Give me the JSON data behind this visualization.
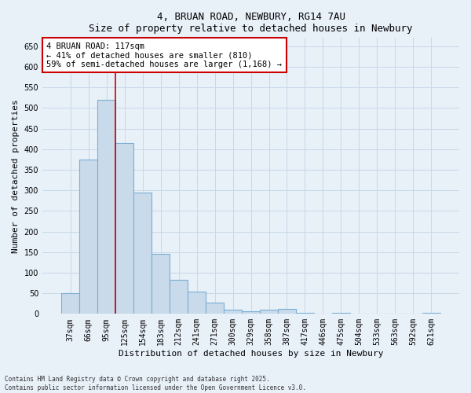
{
  "title_line1": "4, BRUAN ROAD, NEWBURY, RG14 7AU",
  "title_line2": "Size of property relative to detached houses in Newbury",
  "xlabel": "Distribution of detached houses by size in Newbury",
  "ylabel": "Number of detached properties",
  "categories": [
    "37sqm",
    "66sqm",
    "95sqm",
    "125sqm",
    "154sqm",
    "183sqm",
    "212sqm",
    "241sqm",
    "271sqm",
    "300sqm",
    "329sqm",
    "358sqm",
    "387sqm",
    "417sqm",
    "446sqm",
    "475sqm",
    "504sqm",
    "533sqm",
    "563sqm",
    "592sqm",
    "621sqm"
  ],
  "values": [
    50,
    375,
    520,
    415,
    295,
    145,
    83,
    55,
    28,
    10,
    7,
    11,
    12,
    2,
    0,
    3,
    0,
    0,
    0,
    0,
    2
  ],
  "bar_color": "#c9daea",
  "bar_edge_color": "#7bafd4",
  "vline_after_index": 2,
  "vline_color": "#cc0000",
  "annotation_text": "4 BRUAN ROAD: 117sqm\n← 41% of detached houses are smaller (810)\n59% of semi-detached houses are larger (1,168) →",
  "annotation_box_color": "#ffffff",
  "annotation_box_edge": "#cc0000",
  "ylim": [
    0,
    670
  ],
  "yticks": [
    0,
    50,
    100,
    150,
    200,
    250,
    300,
    350,
    400,
    450,
    500,
    550,
    600,
    650
  ],
  "grid_color": "#c8d8e8",
  "background_color": "#e8f0f8",
  "footer_line1": "Contains HM Land Registry data © Crown copyright and database right 2025.",
  "footer_line2": "Contains public sector information licensed under the Open Government Licence v3.0."
}
